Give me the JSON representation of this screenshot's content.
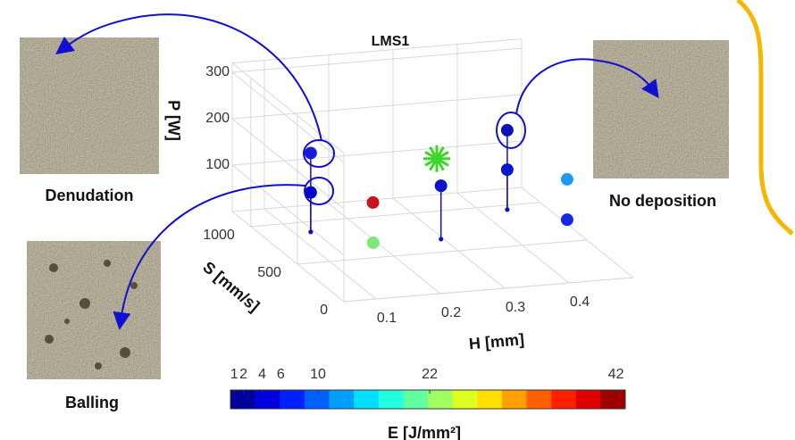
{
  "chart_data": {
    "type": "scatter3d",
    "title": "LMS1",
    "xlabel": "H [mm]",
    "ylabel": "S [mm/s]",
    "zlabel": "P [W]",
    "xlim": [
      0.05,
      0.5
    ],
    "ylim": [
      0,
      1200
    ],
    "zlim": [
      0,
      320
    ],
    "xticks": [
      0.1,
      0.2,
      0.3,
      0.4
    ],
    "yticks": [
      0,
      500,
      1000
    ],
    "zticks": [
      100,
      200,
      300
    ],
    "grid": true,
    "points": [
      {
        "h": 0.125,
        "s": 875,
        "p": 170,
        "color": "#1a1adb",
        "marker": "circle",
        "stem": true
      },
      {
        "h": 0.125,
        "s": 875,
        "p": 85,
        "color": "#0000c8",
        "marker": "circle",
        "stem": true
      },
      {
        "h": 0.183,
        "s": 607,
        "p": 100,
        "color": "#c8141e",
        "marker": "circle",
        "stem": false
      },
      {
        "h": 0.178,
        "s": 570,
        "p": 20,
        "color": "#7ee87e",
        "marker": "circle",
        "stem": false
      },
      {
        "h": 0.309,
        "s": 792,
        "p": 150,
        "color": "#3cd62a",
        "marker": "star",
        "stem": false
      },
      {
        "h": 0.296,
        "s": 657,
        "p": 115,
        "color": "#0a14c8",
        "marker": "circle",
        "stem": true
      },
      {
        "h": 0.441,
        "s": 947,
        "p": 171,
        "color": "#0a14b4",
        "marker": "circle",
        "stem": true
      },
      {
        "h": 0.441,
        "s": 947,
        "p": 86,
        "color": "#0a14c8",
        "marker": "circle",
        "stem": true
      },
      {
        "h": 0.481,
        "s": 580,
        "p": 120,
        "color": "#1e9af0",
        "marker": "circle",
        "stem": false
      },
      {
        "h": 0.481,
        "s": 580,
        "p": 33,
        "color": "#1428e6",
        "marker": "circle",
        "stem": false
      }
    ],
    "colorbar": {
      "label": "E [J/mm²]",
      "lim": [
        0.6,
        43
      ],
      "ticks": [
        1,
        2,
        4,
        6,
        10,
        22,
        42
      ]
    },
    "annotations": [
      "Denudation",
      "No deposition",
      "Balling"
    ]
  }
}
